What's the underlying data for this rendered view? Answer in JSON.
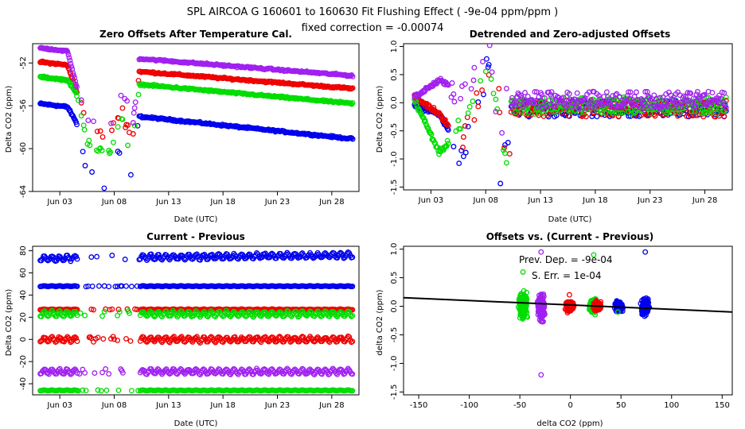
{
  "figure": {
    "title_line1": "SPL   AIRCOA G   160601 to 160630   Fit Flushing Effect ( -9e-04 ppm/ppm )",
    "title_line2": "fixed correction = -0.00074"
  },
  "colors": {
    "blue": "#0000ee",
    "red": "#ee0000",
    "green": "#00dd00",
    "purple": "#a020f0",
    "black": "#000000"
  },
  "chart_data": [
    {
      "type": "scatter",
      "id": "p1",
      "title": "Zero Offsets After Temperature Cal.",
      "xlabel": "Date (UTC)",
      "ylabel": "Delta CO2 (ppm)",
      "xlim": [
        0.5,
        30.5
      ],
      "ylim": [
        -64,
        -50.2
      ],
      "xticks": [
        3,
        8,
        13,
        18,
        23,
        28
      ],
      "xtick_labels": [
        "Jun 03",
        "Jun 08",
        "Jun 13",
        "Jun 18",
        "Jun 23",
        "Jun 28"
      ],
      "yticks": [
        -64,
        -60,
        -56,
        -52
      ],
      "ytick_labels": [
        "-64",
        "-60",
        "-56",
        "-52"
      ],
      "series": [
        {
          "name": "blue",
          "color": "blue",
          "x": [
            1.2,
            3.7,
            4.5,
            5.6,
            6.9,
            7.6,
            8.2,
            8.7,
            9.3,
            9.7,
            10.3,
            30.0
          ],
          "y": [
            -55.8,
            -56.1,
            -57.5,
            -62.2,
            -63.4,
            -63.5,
            -60.6,
            -59.8,
            -63.8,
            -61.6,
            -57.0,
            -59.1
          ]
        },
        {
          "name": "red",
          "color": "red",
          "x": [
            1.2,
            3.7,
            4.5,
            5.6,
            6.9,
            7.6,
            8.2,
            8.7,
            9.3,
            9.7,
            10.3,
            30.0
          ],
          "y": [
            -51.9,
            -52.2,
            -54.5,
            -57.5,
            -58.7,
            -58.6,
            -57.5,
            -56.1,
            -58.4,
            -59.0,
            -52.8,
            -54.4
          ]
        },
        {
          "name": "green",
          "color": "green",
          "x": [
            1.2,
            3.7,
            4.5,
            5.6,
            6.9,
            7.6,
            8.2,
            8.7,
            9.3,
            9.7,
            10.3,
            30.0
          ],
          "y": [
            -53.3,
            -53.6,
            -54.8,
            -59.4,
            -60.6,
            -60.3,
            -58.2,
            -57.4,
            -60.0,
            -59.0,
            -54.0,
            -55.8
          ]
        },
        {
          "name": "purple",
          "color": "purple",
          "x": [
            1.2,
            3.7,
            4.5,
            5.6,
            6.9,
            7.6,
            8.2,
            8.7,
            9.3,
            9.7,
            10.3,
            30.0
          ],
          "y": [
            -50.6,
            -50.9,
            -54.0,
            -57.2,
            -57.9,
            -57.8,
            -55.8,
            -54.8,
            -56.3,
            -58.2,
            -51.6,
            -53.2
          ]
        }
      ]
    },
    {
      "type": "scatter",
      "id": "p2",
      "title": "Detrended and Zero-adjusted Offsets",
      "xlabel": "Date (UTC)",
      "ylabel": "Delta CO2 (ppm)",
      "xlim": [
        0.5,
        30.5
      ],
      "ylim": [
        -1.55,
        1.05
      ],
      "xticks": [
        3,
        8,
        13,
        18,
        23,
        28
      ],
      "xtick_labels": [
        "Jun 03",
        "Jun 08",
        "Jun 13",
        "Jun 18",
        "Jun 23",
        "Jun 28"
      ],
      "yticks": [
        -1.5,
        -1.0,
        -0.5,
        0.0,
        0.5,
        1.0
      ],
      "ytick_labels": [
        "-1.5",
        "-1.0",
        "-0.5",
        "0.0",
        "0.5",
        "1.0"
      ],
      "series": [
        {
          "name": "blue",
          "color": "blue",
          "x": [
            1.5,
            3.8,
            5.8,
            8.3,
            9.2,
            9.8,
            10.4,
            13.0,
            20.0,
            26.0,
            30.0
          ],
          "y": [
            -0.05,
            -0.2,
            -0.9,
            0.7,
            -1.5,
            -0.8,
            -0.75,
            -0.1,
            -0.05,
            -0.15,
            -0.1
          ]
        },
        {
          "name": "red",
          "color": "red",
          "x": [
            1.5,
            3.8,
            5.8,
            8.3,
            9.2,
            9.8,
            10.4,
            13.0,
            20.0,
            26.0,
            30.0
          ],
          "y": [
            0.1,
            -0.2,
            -0.7,
            0.5,
            0.05,
            -0.9,
            -0.7,
            -0.05,
            -0.05,
            0.0,
            -0.1
          ]
        },
        {
          "name": "green",
          "color": "green",
          "x": [
            1.5,
            3.8,
            5.8,
            8.3,
            9.2,
            9.8,
            10.4,
            13.0,
            20.0,
            26.0,
            30.0
          ],
          "y": [
            0.05,
            -0.9,
            -0.4,
            0.55,
            -0.3,
            -0.95,
            -0.75,
            0.0,
            -0.05,
            0.0,
            -0.05
          ]
        },
        {
          "name": "purple",
          "color": "purple",
          "x": [
            1.5,
            3.8,
            5.8,
            8.3,
            9.2,
            9.8,
            10.4,
            13.0,
            20.0,
            26.0,
            30.0
          ],
          "y": [
            0.1,
            0.4,
            0.15,
            1.0,
            -0.6,
            0.1,
            0.2,
            0.05,
            0.1,
            0.05,
            0.05
          ]
        }
      ]
    },
    {
      "type": "scatter",
      "id": "p3",
      "title": "Current - Previous",
      "xlabel": "Date (UTC)",
      "ylabel": "Delta CO2 (ppm)",
      "xlim": [
        0.5,
        30.5
      ],
      "ylim": [
        -50,
        84
      ],
      "xticks": [
        3,
        8,
        13,
        18,
        23,
        28
      ],
      "xtick_labels": [
        "Jun 03",
        "Jun 08",
        "Jun 13",
        "Jun 18",
        "Jun 23",
        "Jun 28"
      ],
      "yticks": [
        -40,
        -20,
        0,
        20,
        40,
        60,
        80
      ],
      "ytick_labels": [
        "-40",
        "-20",
        "0",
        "20",
        "40",
        "60",
        "80"
      ],
      "series": [
        {
          "name": "blue",
          "color": "blue",
          "x": [
            1.2,
            30.0
          ],
          "y": [
            73,
            76
          ]
        },
        {
          "name": "blue-2",
          "color": "blue",
          "x": [
            1.2,
            30.0
          ],
          "y": [
            48,
            48
          ]
        },
        {
          "name": "red",
          "color": "red",
          "x": [
            1.2,
            30.0
          ],
          "y": [
            27,
            27
          ]
        },
        {
          "name": "green",
          "color": "green",
          "x": [
            1.2,
            30.0
          ],
          "y": [
            23,
            23
          ]
        },
        {
          "name": "red-2",
          "color": "red",
          "x": [
            1.2,
            30.0
          ],
          "y": [
            0,
            0
          ]
        },
        {
          "name": "purple",
          "color": "purple",
          "x": [
            1.2,
            30.0
          ],
          "y": [
            -29,
            -29
          ]
        },
        {
          "name": "green-2",
          "color": "green",
          "x": [
            1.2,
            30.0
          ],
          "y": [
            -46,
            -46
          ]
        }
      ]
    },
    {
      "type": "scatter",
      "id": "p4",
      "title": "Offsets vs. (Current - Previous)",
      "xlabel": "delta CO2 (ppm)",
      "ylabel": "delta CO2 (ppm)",
      "xlim": [
        -165,
        160
      ],
      "ylim": [
        -1.55,
        1.05
      ],
      "xticks": [
        -150,
        -100,
        -50,
        0,
        50,
        100,
        150
      ],
      "xtick_labels": [
        "-150",
        "-100",
        "-50",
        "0",
        "50",
        "100",
        "150"
      ],
      "yticks": [
        -1.5,
        -1.0,
        -0.5,
        0.0,
        0.5,
        1.0
      ],
      "ytick_labels": [
        "-1.5",
        "-1.0",
        "-0.5",
        "0.0",
        "0.5",
        "1.0"
      ],
      "fit_line": {
        "slope": -0.0009,
        "intercept": 0.0,
        "color": "black"
      },
      "annotations": [
        "Prev. Dep. =  -9e-04",
        "S. Err. =  1e-04"
      ],
      "series": [
        {
          "name": "purple",
          "color": "purple",
          "x": [
            -29,
            -29
          ],
          "y": [
            0.95,
            -1.2
          ]
        },
        {
          "name": "green",
          "color": "green",
          "x": [
            -47,
            23,
            47
          ],
          "y": [
            0.6,
            0.9,
            -0.1
          ]
        },
        {
          "name": "red",
          "color": "red",
          "x": [
            -1,
            27
          ],
          "y": [
            0.2,
            0.05
          ]
        },
        {
          "name": "blue",
          "color": "blue",
          "x": [
            48,
            74
          ],
          "y": [
            0.05,
            0.95
          ]
        }
      ]
    }
  ]
}
